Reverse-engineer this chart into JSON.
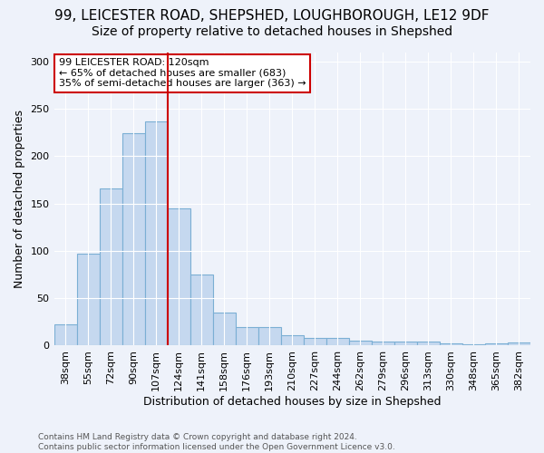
{
  "title1": "99, LEICESTER ROAD, SHEPSHED, LOUGHBOROUGH, LE12 9DF",
  "title2": "Size of property relative to detached houses in Shepshed",
  "xlabel": "Distribution of detached houses by size in Shepshed",
  "ylabel": "Number of detached properties",
  "bar_values": [
    22,
    97,
    166,
    224,
    237,
    145,
    75,
    35,
    20,
    20,
    11,
    8,
    8,
    5,
    4,
    4,
    4,
    2,
    1,
    2,
    3
  ],
  "bar_labels": [
    "38sqm",
    "55sqm",
    "72sqm",
    "90sqm",
    "107sqm",
    "124sqm",
    "141sqm",
    "158sqm",
    "176sqm",
    "193sqm",
    "210sqm",
    "227sqm",
    "244sqm",
    "262sqm",
    "279sqm",
    "296sqm",
    "313sqm",
    "330sqm",
    "348sqm",
    "365sqm",
    "382sqm"
  ],
  "bar_color": "#c5d8ef",
  "bar_edge_color": "#7bafd4",
  "highlight_line_color": "#cc0000",
  "annotation_line1": "99 LEICESTER ROAD: 120sqm",
  "annotation_line2": "← 65% of detached houses are smaller (683)",
  "annotation_line3": "35% of semi-detached houses are larger (363) →",
  "annotation_box_color": "#ffffff",
  "annotation_box_edge": "#cc0000",
  "footer": "Contains HM Land Registry data © Crown copyright and database right 2024.\nContains public sector information licensed under the Open Government Licence v3.0.",
  "ylim": [
    0,
    310
  ],
  "title1_fontsize": 11,
  "title2_fontsize": 10,
  "ylabel_fontsize": 9,
  "xlabel_fontsize": 9,
  "tick_fontsize": 8,
  "annotation_fontsize": 8,
  "footer_fontsize": 6.5,
  "background_color": "#eef2fa"
}
